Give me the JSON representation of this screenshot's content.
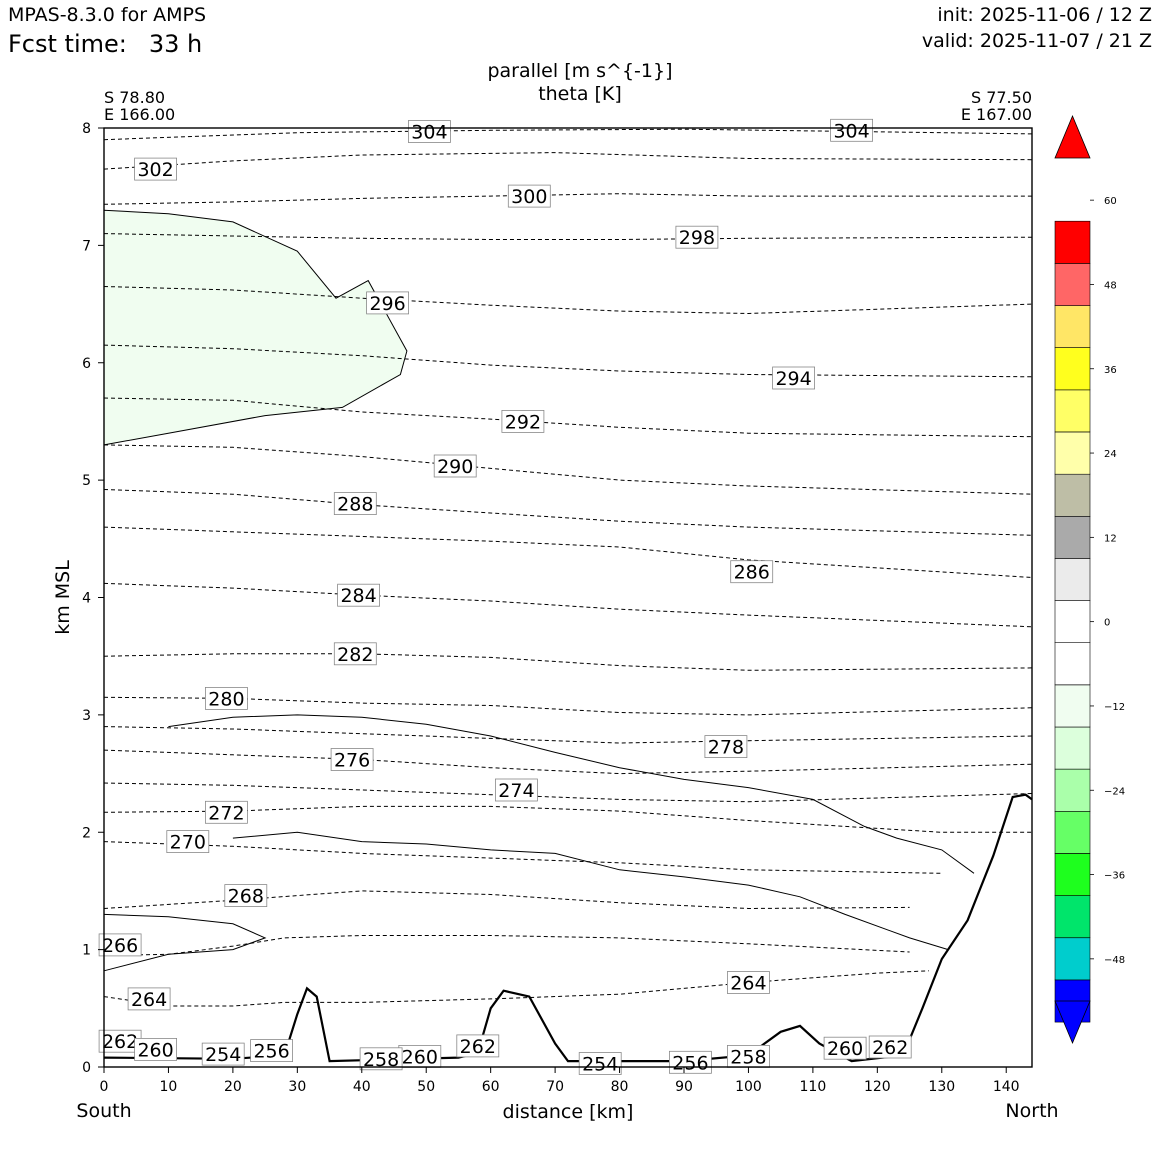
{
  "header": {
    "model": "MPAS-8.3.0 for AMPS",
    "fcst_label": "Fcst time:",
    "fcst_value": "33 h",
    "init": "init: 2025-11-06 / 12 Z",
    "valid": "valid: 2025-11-07 / 21 Z"
  },
  "endpoints": {
    "left_lat": "S 78.80",
    "left_lon": "E 166.00",
    "right_lat": "S 77.50",
    "right_lon": "E 167.00",
    "left_dir": "South",
    "right_dir": "North"
  },
  "colors": {
    "terrain_line": "#000000",
    "negative_fill": "#f0fdf0"
  },
  "chart_data": {
    "type": "cross-section",
    "title": "parallel [m s^{-1}]",
    "subtitle": "theta [K]",
    "xlabel": "distance [km]",
    "ylabel": "km MSL",
    "xlim": [
      0,
      144
    ],
    "ylim": [
      0,
      8
    ],
    "x_ticks": [
      0,
      10,
      20,
      30,
      40,
      50,
      60,
      70,
      80,
      90,
      100,
      110,
      120,
      130,
      140
    ],
    "y_ticks": [
      0,
      1,
      2,
      3,
      4,
      5,
      6,
      7,
      8
    ],
    "grid": false,
    "theta_contours": [
      {
        "theta": 304,
        "labels": [
          [
            50.5,
            7.97
          ],
          [
            116,
            7.98
          ]
        ]
      },
      {
        "theta": 302,
        "labels": [
          [
            8,
            7.65
          ]
        ]
      },
      {
        "theta": 300,
        "labels": [
          [
            66,
            7.42
          ]
        ]
      },
      {
        "theta": 298,
        "labels": [
          [
            92,
            7.07
          ]
        ]
      },
      {
        "theta": 296,
        "labels": [
          [
            44,
            6.51
          ]
        ]
      },
      {
        "theta": 294,
        "labels": [
          [
            107,
            5.87
          ]
        ]
      },
      {
        "theta": 292,
        "labels": [
          [
            65,
            5.5
          ]
        ]
      },
      {
        "theta": 290,
        "labels": [
          [
            54.5,
            5.12
          ]
        ]
      },
      {
        "theta": 288,
        "labels": [
          [
            39,
            4.8
          ]
        ]
      },
      {
        "theta": 286,
        "labels": [
          [
            100.5,
            4.22
          ]
        ]
      },
      {
        "theta": 284,
        "labels": [
          [
            39.5,
            4.02
          ]
        ]
      },
      {
        "theta": 282,
        "labels": [
          [
            39,
            3.52
          ]
        ]
      },
      {
        "theta": 280,
        "labels": [
          [
            19,
            3.14
          ]
        ]
      },
      {
        "theta": 278,
        "labels": [
          [
            96.5,
            2.73
          ]
        ]
      },
      {
        "theta": 276,
        "labels": [
          [
            38.5,
            2.62
          ]
        ]
      },
      {
        "theta": 274,
        "labels": [
          [
            64,
            2.36
          ]
        ]
      },
      {
        "theta": 272,
        "labels": [
          [
            19,
            2.17
          ]
        ]
      },
      {
        "theta": 270,
        "labels": [
          [
            13,
            1.92
          ]
        ]
      },
      {
        "theta": 268,
        "labels": [
          [
            22,
            1.46
          ]
        ]
      },
      {
        "theta": 266,
        "labels": [
          [
            2.5,
            1.04
          ]
        ]
      },
      {
        "theta": 264,
        "labels": [
          [
            7,
            0.58
          ],
          [
            100,
            0.72
          ]
        ]
      },
      {
        "theta": 262,
        "labels": [
          [
            2.5,
            0.22
          ],
          [
            58,
            0.18
          ],
          [
            122,
            0.17
          ]
        ]
      },
      {
        "theta": 260,
        "labels": [
          [
            8,
            0.15
          ],
          [
            49,
            0.09
          ],
          [
            115,
            0.16
          ]
        ]
      },
      {
        "theta": 258,
        "labels": [
          [
            43,
            0.07
          ],
          [
            100,
            0.09
          ]
        ]
      },
      {
        "theta": 256,
        "labels": [
          [
            26,
            0.14
          ],
          [
            91,
            0.04
          ]
        ]
      },
      {
        "theta": 254,
        "labels": [
          [
            18.5,
            0.11
          ],
          [
            77,
            0.03
          ]
        ]
      }
    ],
    "theta_lines": [
      [
        [
          0,
          7.9
        ],
        [
          30,
          7.96
        ],
        [
          60,
          7.98
        ],
        [
          90,
          7.99
        ],
        [
          144,
          7.95
        ]
      ],
      [
        [
          0,
          7.65
        ],
        [
          20,
          7.72
        ],
        [
          40,
          7.77
        ],
        [
          70,
          7.79
        ],
        [
          100,
          7.74
        ],
        [
          144,
          7.73
        ]
      ],
      [
        [
          0,
          7.35
        ],
        [
          20,
          7.37
        ],
        [
          40,
          7.4
        ],
        [
          60,
          7.42
        ],
        [
          80,
          7.44
        ],
        [
          100,
          7.42
        ],
        [
          144,
          7.42
        ]
      ],
      [
        [
          0,
          7.1
        ],
        [
          20,
          7.08
        ],
        [
          40,
          7.06
        ],
        [
          60,
          7.05
        ],
        [
          80,
          7.05
        ],
        [
          100,
          7.06
        ],
        [
          144,
          7.07
        ]
      ],
      [
        [
          0,
          6.65
        ],
        [
          20,
          6.62
        ],
        [
          40,
          6.55
        ],
        [
          60,
          6.49
        ],
        [
          80,
          6.44
        ],
        [
          100,
          6.42
        ],
        [
          144,
          6.5
        ]
      ],
      [
        [
          0,
          6.15
        ],
        [
          20,
          6.12
        ],
        [
          40,
          6.06
        ],
        [
          60,
          5.98
        ],
        [
          80,
          5.93
        ],
        [
          100,
          5.9
        ],
        [
          144,
          5.88
        ]
      ],
      [
        [
          0,
          5.7
        ],
        [
          20,
          5.68
        ],
        [
          40,
          5.58
        ],
        [
          60,
          5.52
        ],
        [
          80,
          5.45
        ],
        [
          100,
          5.4
        ],
        [
          144,
          5.37
        ]
      ],
      [
        [
          0,
          5.3
        ],
        [
          20,
          5.28
        ],
        [
          40,
          5.2
        ],
        [
          60,
          5.1
        ],
        [
          80,
          5.0
        ],
        [
          100,
          4.95
        ],
        [
          144,
          4.88
        ]
      ],
      [
        [
          0,
          4.92
        ],
        [
          20,
          4.88
        ],
        [
          40,
          4.79
        ],
        [
          60,
          4.72
        ],
        [
          80,
          4.65
        ],
        [
          100,
          4.6
        ],
        [
          144,
          4.53
        ]
      ],
      [
        [
          0,
          4.6
        ],
        [
          20,
          4.56
        ],
        [
          40,
          4.52
        ],
        [
          60,
          4.48
        ],
        [
          80,
          4.43
        ],
        [
          100,
          4.32
        ],
        [
          144,
          4.17
        ]
      ],
      [
        [
          0,
          4.12
        ],
        [
          20,
          4.08
        ],
        [
          40,
          4.02
        ],
        [
          60,
          3.97
        ],
        [
          80,
          3.9
        ],
        [
          100,
          3.85
        ],
        [
          144,
          3.75
        ]
      ],
      [
        [
          0,
          3.5
        ],
        [
          20,
          3.52
        ],
        [
          40,
          3.52
        ],
        [
          60,
          3.49
        ],
        [
          80,
          3.42
        ],
        [
          100,
          3.38
        ],
        [
          144,
          3.4
        ]
      ],
      [
        [
          0,
          3.15
        ],
        [
          20,
          3.14
        ],
        [
          40,
          3.1
        ],
        [
          60,
          3.08
        ],
        [
          80,
          3.02
        ],
        [
          100,
          3.0
        ],
        [
          144,
          3.06
        ]
      ],
      [
        [
          0,
          2.9
        ],
        [
          20,
          2.88
        ],
        [
          40,
          2.84
        ],
        [
          60,
          2.8
        ],
        [
          80,
          2.76
        ],
        [
          100,
          2.78
        ],
        [
          144,
          2.82
        ]
      ],
      [
        [
          0,
          2.7
        ],
        [
          20,
          2.66
        ],
        [
          40,
          2.62
        ],
        [
          60,
          2.55
        ],
        [
          80,
          2.5
        ],
        [
          100,
          2.52
        ],
        [
          144,
          2.58
        ]
      ],
      [
        [
          0,
          2.42
        ],
        [
          20,
          2.4
        ],
        [
          40,
          2.36
        ],
        [
          60,
          2.32
        ],
        [
          80,
          2.28
        ],
        [
          100,
          2.26
        ],
        [
          144,
          2.33
        ]
      ],
      [
        [
          0,
          2.17
        ],
        [
          20,
          2.18
        ],
        [
          40,
          2.22
        ],
        [
          60,
          2.22
        ],
        [
          80,
          2.18
        ],
        [
          100,
          2.1
        ],
        [
          130,
          2.0
        ],
        [
          144,
          2.0
        ]
      ],
      [
        [
          0,
          1.92
        ],
        [
          20,
          1.88
        ],
        [
          40,
          1.82
        ],
        [
          60,
          1.78
        ],
        [
          80,
          1.74
        ],
        [
          100,
          1.68
        ],
        [
          130,
          1.65
        ]
      ],
      [
        [
          0,
          1.35
        ],
        [
          20,
          1.42
        ],
        [
          40,
          1.5
        ],
        [
          60,
          1.47
        ],
        [
          80,
          1.4
        ],
        [
          100,
          1.35
        ],
        [
          125,
          1.36
        ]
      ],
      [
        [
          0,
          0.95
        ],
        [
          10,
          0.96
        ],
        [
          20,
          1.03
        ],
        [
          28,
          1.1
        ],
        [
          40,
          1.12
        ],
        [
          60,
          1.12
        ],
        [
          80,
          1.1
        ],
        [
          100,
          1.05
        ],
        [
          125,
          0.98
        ]
      ],
      [
        [
          0,
          0.6
        ],
        [
          10,
          0.52
        ],
        [
          20,
          0.52
        ],
        [
          28,
          0.55
        ],
        [
          40,
          0.55
        ],
        [
          60,
          0.58
        ],
        [
          80,
          0.62
        ],
        [
          100,
          0.72
        ],
        [
          120,
          0.8
        ],
        [
          128,
          0.82
        ]
      ]
    ],
    "terrain": [
      [
        0,
        0.08
      ],
      [
        20,
        0.07
      ],
      [
        28,
        0.1
      ],
      [
        30,
        0.45
      ],
      [
        31.5,
        0.67
      ],
      [
        33,
        0.6
      ],
      [
        35,
        0.05
      ],
      [
        55,
        0.08
      ],
      [
        58,
        0.12
      ],
      [
        60,
        0.5
      ],
      [
        62,
        0.65
      ],
      [
        66,
        0.6
      ],
      [
        70,
        0.2
      ],
      [
        72,
        0.05
      ],
      [
        90,
        0.05
      ],
      [
        100,
        0.1
      ],
      [
        105,
        0.3
      ],
      [
        108,
        0.35
      ],
      [
        111,
        0.2
      ],
      [
        116,
        0.05
      ],
      [
        124,
        0.1
      ],
      [
        127,
        0.5
      ],
      [
        130,
        0.92
      ],
      [
        134,
        1.25
      ],
      [
        138,
        1.8
      ],
      [
        141,
        2.3
      ],
      [
        143,
        2.32
      ],
      [
        144,
        2.28
      ]
    ],
    "wind_zero_contours": [
      [
        [
          10,
          2.9
        ],
        [
          20,
          2.98
        ],
        [
          30,
          3.0
        ],
        [
          40,
          2.98
        ],
        [
          50,
          2.92
        ],
        [
          60,
          2.82
        ],
        [
          70,
          2.68
        ],
        [
          80,
          2.55
        ],
        [
          90,
          2.45
        ],
        [
          100,
          2.38
        ],
        [
          110,
          2.28
        ],
        [
          118,
          2.05
        ],
        [
          123,
          1.95
        ],
        [
          130,
          1.85
        ],
        [
          135,
          1.65
        ]
      ],
      [
        [
          20,
          1.95
        ],
        [
          30,
          2.0
        ],
        [
          40,
          1.92
        ],
        [
          50,
          1.9
        ],
        [
          60,
          1.85
        ],
        [
          70,
          1.82
        ],
        [
          80,
          1.68
        ],
        [
          90,
          1.62
        ],
        [
          100,
          1.55
        ],
        [
          108,
          1.45
        ],
        [
          115,
          1.3
        ],
        [
          125,
          1.1
        ],
        [
          131,
          1.0
        ]
      ],
      [
        [
          0,
          1.3
        ],
        [
          10,
          1.28
        ],
        [
          20,
          1.22
        ],
        [
          25,
          1.1
        ],
        [
          20,
          1.0
        ],
        [
          10,
          0.96
        ],
        [
          0,
          0.82
        ]
      ]
    ],
    "negative_region": [
      [
        0,
        7.3
      ],
      [
        10,
        7.27
      ],
      [
        20,
        7.2
      ],
      [
        30,
        6.95
      ],
      [
        36,
        6.55
      ],
      [
        41,
        6.7
      ],
      [
        47,
        6.1
      ],
      [
        46,
        5.9
      ],
      [
        37,
        5.62
      ],
      [
        25,
        5.55
      ],
      [
        10,
        5.4
      ],
      [
        0,
        5.3
      ]
    ],
    "colorbar": {
      "ticks": [
        -48,
        -36,
        -24,
        -12,
        0,
        12,
        24,
        36,
        48,
        60
      ],
      "levels": [
        {
          "value": -54,
          "color": "#0000ff"
        },
        {
          "value": -48,
          "color": "#00cdcd"
        },
        {
          "value": -42,
          "color": "#00e56b"
        },
        {
          "value": -36,
          "color": "#1eff1e"
        },
        {
          "value": -30,
          "color": "#66ff66"
        },
        {
          "value": -24,
          "color": "#aaffaa"
        },
        {
          "value": -18,
          "color": "#dcffdc"
        },
        {
          "value": -12,
          "color": "#f0fdf0"
        },
        {
          "value": -6,
          "color": "#ffffff"
        },
        {
          "value": 0,
          "color": "#ffffff"
        },
        {
          "value": 6,
          "color": "#ebebeb"
        },
        {
          "value": 12,
          "color": "#aaaaaa"
        },
        {
          "value": 18,
          "color": "#bebea6"
        },
        {
          "value": 24,
          "color": "#ffffaa"
        },
        {
          "value": 30,
          "color": "#ffff66"
        },
        {
          "value": 36,
          "color": "#ffff1e"
        },
        {
          "value": 42,
          "color": "#ffe666"
        },
        {
          "value": 48,
          "color": "#ff6666"
        },
        {
          "value": 54,
          "color": "#ff0000"
        }
      ],
      "extend_min_color": "#0000ff",
      "extend_max_color": "#ff0000"
    }
  }
}
